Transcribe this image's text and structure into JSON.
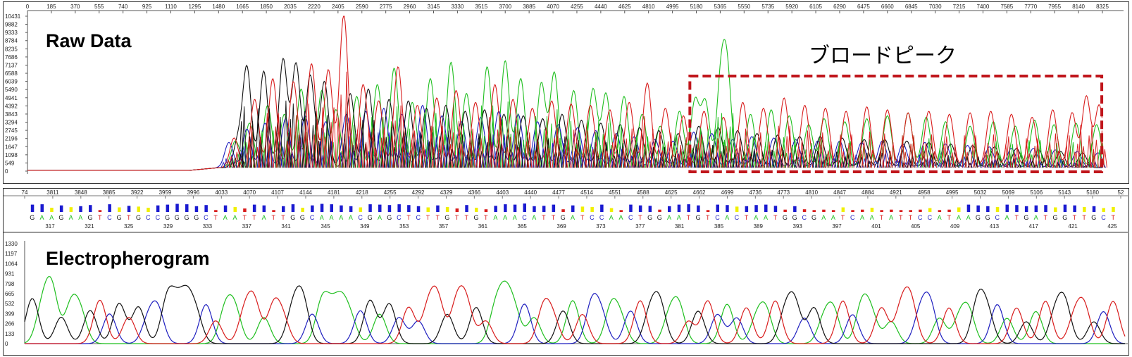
{
  "top": {
    "title": "Raw Data",
    "annotation": "ブロードピーク",
    "highlight_color": "#c0151b"
  },
  "bottom": {
    "title": "Electropherogram"
  },
  "colors": {
    "A": "#1fbf1f",
    "C": "#1f1fbf",
    "G": "#111111",
    "T": "#d81c1c",
    "N": "#f0f000"
  },
  "chart_data": [
    {
      "type": "line",
      "title": "Raw Data",
      "x_ticks": [
        "0",
        "185",
        "370",
        "555",
        "740",
        "925",
        "1110",
        "1295",
        "1480",
        "1665",
        "1850",
        "2035",
        "2220",
        "2405",
        "2590",
        "2775",
        "2960",
        "3145",
        "3330",
        "3515",
        "3700",
        "3885",
        "4070",
        "4255",
        "4440",
        "4625",
        "4810",
        "4995",
        "5180",
        "5365",
        "5550",
        "5735",
        "5920",
        "6105",
        "6290",
        "6475",
        "6660",
        "6845",
        "7030",
        "7215",
        "7400",
        "7585",
        "7770",
        "7955",
        "8140",
        "8325"
      ],
      "y_ticks": [
        "10431",
        "9882",
        "9333",
        "8784",
        "8235",
        "7686",
        "7137",
        "6588",
        "6039",
        "5490",
        "4941",
        "4392",
        "3843",
        "3294",
        "2745",
        "2196",
        "1647",
        "1098",
        "549",
        "0"
      ],
      "xlim": [
        0,
        8325
      ],
      "ylim": [
        0,
        10431
      ],
      "series": [
        {
          "channel": "A",
          "peaks": [
            [
              1610,
              1800
            ],
            [
              1720,
              3000
            ],
            [
              1860,
              4200
            ],
            [
              1990,
              3600
            ],
            [
              2120,
              5300
            ],
            [
              2280,
              5200
            ],
            [
              2390,
              3900
            ],
            [
              2550,
              4800
            ],
            [
              2710,
              5600
            ],
            [
              2840,
              6700
            ],
            [
              2980,
              4400
            ],
            [
              3120,
              6000
            ],
            [
              3280,
              7100
            ],
            [
              3400,
              5000
            ],
            [
              3560,
              6800
            ],
            [
              3700,
              7200
            ],
            [
              3820,
              6000
            ],
            [
              3980,
              5700
            ],
            [
              4080,
              6400
            ],
            [
              4230,
              5200
            ],
            [
              4380,
              5300
            ],
            [
              4480,
              5000
            ],
            [
              4620,
              4800
            ],
            [
              4760,
              3600
            ],
            [
              4900,
              2800
            ],
            [
              5050,
              3800
            ],
            [
              5170,
              4500
            ],
            [
              5250,
              4400
            ],
            [
              5370,
              5600
            ],
            [
              5420,
              6000
            ],
            [
              5600,
              3600
            ],
            [
              5760,
              3900
            ],
            [
              5900,
              3500
            ],
            [
              6050,
              2900
            ],
            [
              6170,
              3300
            ],
            [
              6330,
              3100
            ],
            [
              6500,
              3300
            ],
            [
              6660,
              3500
            ],
            [
              6820,
              3700
            ],
            [
              6960,
              3400
            ],
            [
              7110,
              3100
            ],
            [
              7300,
              2800
            ],
            [
              7480,
              3100
            ],
            [
              7650,
              2800
            ],
            [
              7800,
              3200
            ],
            [
              7950,
              2900
            ],
            [
              8120,
              3000
            ],
            [
              8280,
              2900
            ]
          ]
        },
        {
          "channel": "C",
          "peaks": [
            [
              1560,
              1700
            ],
            [
              1700,
              2600
            ],
            [
              1840,
              3000
            ],
            [
              2000,
              3300
            ],
            [
              2150,
              3500
            ],
            [
              2310,
              3100
            ],
            [
              2470,
              3600
            ],
            [
              2620,
              3800
            ],
            [
              2760,
              4000
            ],
            [
              2900,
              3600
            ],
            [
              3060,
              4200
            ],
            [
              3210,
              3500
            ],
            [
              3360,
              3100
            ],
            [
              3510,
              3400
            ],
            [
              3650,
              3800
            ],
            [
              3800,
              3600
            ],
            [
              3950,
              3100
            ],
            [
              4110,
              2900
            ],
            [
              4260,
              2700
            ],
            [
              4400,
              2500
            ],
            [
              4560,
              2300
            ],
            [
              4700,
              2100
            ],
            [
              4860,
              1900
            ],
            [
              5000,
              1800
            ],
            [
              5160,
              2400
            ],
            [
              5300,
              2300
            ],
            [
              5460,
              1900
            ],
            [
              5610,
              2100
            ],
            [
              5780,
              2000
            ],
            [
              5950,
              1900
            ],
            [
              6120,
              1800
            ],
            [
              6290,
              1800
            ],
            [
              6460,
              1700
            ],
            [
              6620,
              1800
            ],
            [
              6780,
              1600
            ],
            [
              6950,
              1700
            ],
            [
              7110,
              1600
            ],
            [
              7280,
              1500
            ],
            [
              7450,
              1400
            ],
            [
              7620,
              1300
            ],
            [
              7790,
              1300
            ],
            [
              7960,
              1200
            ],
            [
              8130,
              1100
            ],
            [
              8290,
              1000
            ]
          ]
        },
        {
          "channel": "G",
          "peaks": [
            [
              1630,
              1800
            ],
            [
              1700,
              6700
            ],
            [
              1830,
              6500
            ],
            [
              1980,
              7300
            ],
            [
              2080,
              7000
            ],
            [
              2190,
              6200
            ],
            [
              2300,
              5800
            ],
            [
              2500,
              5000
            ],
            [
              2640,
              5300
            ],
            [
              2800,
              4600
            ],
            [
              2950,
              4500
            ],
            [
              3090,
              4000
            ],
            [
              3240,
              4200
            ],
            [
              3390,
              3800
            ],
            [
              3540,
              3900
            ],
            [
              3690,
              3600
            ],
            [
              3840,
              3500
            ],
            [
              3990,
              3300
            ],
            [
              4140,
              3600
            ],
            [
              4290,
              3200
            ],
            [
              4440,
              3000
            ],
            [
              4590,
              2900
            ],
            [
              4740,
              2700
            ],
            [
              4890,
              2500
            ],
            [
              5040,
              2300
            ],
            [
              5200,
              2800
            ],
            [
              5350,
              2700
            ],
            [
              5500,
              2500
            ],
            [
              5650,
              2300
            ],
            [
              5810,
              2200
            ],
            [
              5980,
              2100
            ],
            [
              6140,
              2100
            ],
            [
              6310,
              2000
            ],
            [
              6480,
              1900
            ],
            [
              6640,
              1900
            ],
            [
              6810,
              1800
            ],
            [
              6980,
              1700
            ],
            [
              7150,
              1600
            ],
            [
              7320,
              1500
            ],
            [
              7490,
              1400
            ],
            [
              7660,
              1300
            ],
            [
              7830,
              1200
            ],
            [
              8000,
              1100
            ],
            [
              8170,
              1000
            ]
          ]
        },
        {
          "channel": "T",
          "peaks": [
            [
              1600,
              2000
            ],
            [
              1760,
              4600
            ],
            [
              1900,
              6000
            ],
            [
              2060,
              5800
            ],
            [
              2200,
              7000
            ],
            [
              2330,
              6600
            ],
            [
              2450,
              10300
            ],
            [
              2600,
              5600
            ],
            [
              2720,
              4500
            ],
            [
              2870,
              6800
            ],
            [
              3020,
              4200
            ],
            [
              3170,
              4700
            ],
            [
              3320,
              5200
            ],
            [
              3470,
              4400
            ],
            [
              3620,
              5600
            ],
            [
              3760,
              4600
            ],
            [
              3910,
              4000
            ],
            [
              4060,
              4500
            ],
            [
              4210,
              4300
            ],
            [
              4360,
              4200
            ],
            [
              4510,
              3900
            ],
            [
              4660,
              4400
            ],
            [
              4800,
              5700
            ],
            [
              4940,
              4000
            ],
            [
              5080,
              3500
            ],
            [
              5240,
              3800
            ],
            [
              5390,
              3400
            ],
            [
              5540,
              4400
            ],
            [
              5700,
              4000
            ],
            [
              5860,
              4700
            ],
            [
              6020,
              4200
            ],
            [
              6180,
              4000
            ],
            [
              6340,
              3800
            ],
            [
              6500,
              4100
            ],
            [
              6660,
              3900
            ],
            [
              6820,
              3700
            ],
            [
              6980,
              3800
            ],
            [
              7140,
              3600
            ],
            [
              7300,
              3700
            ],
            [
              7460,
              3800
            ],
            [
              7620,
              3600
            ],
            [
              7780,
              3400
            ],
            [
              7940,
              3900
            ],
            [
              8090,
              3700
            ],
            [
              8200,
              4800
            ],
            [
              8300,
              4200
            ]
          ]
        }
      ]
    },
    {
      "type": "line",
      "title": "Electropherogram",
      "x_ticks": [
        "74",
        "3811",
        "3848",
        "3885",
        "3922",
        "3959",
        "3996",
        "4033",
        "4070",
        "4107",
        "4144",
        "4181",
        "4218",
        "4255",
        "4292",
        "4329",
        "4366",
        "4403",
        "4440",
        "4477",
        "4514",
        "4551",
        "4588",
        "4625",
        "4662",
        "4699",
        "4736",
        "4773",
        "4810",
        "4847",
        "4884",
        "4921",
        "4958",
        "4995",
        "5032",
        "5069",
        "5106",
        "5143",
        "5180",
        "52"
      ],
      "y_ticks": [
        "1330",
        "1197",
        "1064",
        "931",
        "798",
        "665",
        "532",
        "399",
        "266",
        "133",
        "0"
      ],
      "ylim": [
        0,
        1330
      ],
      "bases": "GAAGAAGTCGTGCCGGGGCTAATTATTGGCAAAACGAGCTCTTGTTGTAAACATTGATCCAACTGGAATGTCACTAATGGCGAATCAATATTCCATAAGGCATGATGGTTGCT",
      "base_quality": [
        38,
        40,
        22,
        34,
        25,
        30,
        36,
        10,
        40,
        24,
        32,
        28,
        22,
        34,
        38,
        42,
        40,
        30,
        36,
        10,
        34,
        26,
        18,
        38,
        34,
        10,
        30,
        40,
        22,
        34,
        42,
        40,
        34,
        30,
        24,
        40,
        38,
        36,
        40,
        36,
        30,
        24,
        34,
        26,
        18,
        36,
        22,
        14,
        32,
        40,
        38,
        44,
        30,
        32,
        38,
        14,
        34,
        28,
        26,
        38,
        20,
        10,
        38,
        34,
        32,
        12,
        30,
        38,
        40,
        34,
        10,
        38,
        36,
        28,
        30,
        36,
        38,
        32,
        12,
        30,
        14,
        10,
        12,
        10,
        24,
        10,
        12,
        22,
        10,
        12,
        10,
        10,
        12,
        20,
        10,
        12,
        24,
        38,
        34,
        30,
        26,
        38,
        36,
        30,
        34,
        36,
        24,
        38,
        34,
        26,
        30,
        20,
        26,
        12
      ],
      "base_position_labels": [
        "317",
        "321",
        "325",
        "329",
        "333",
        "337",
        "341",
        "345",
        "349",
        "353",
        "357",
        "361",
        "365",
        "369",
        "373",
        "377",
        "381",
        "385",
        "389",
        "393",
        "397",
        "401",
        "405",
        "409",
        "413",
        "417",
        "421",
        "425"
      ]
    }
  ]
}
